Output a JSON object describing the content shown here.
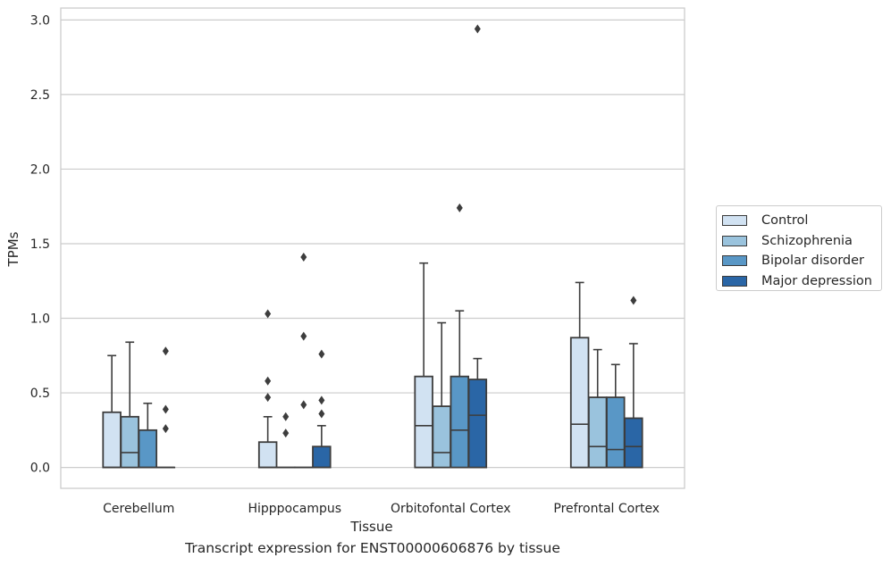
{
  "chart_data": {
    "type": "box",
    "ylabel": "TPMs",
    "xlabel": "Tissue",
    "caption": "Transcript expression for ENST00000606876 by tissue",
    "ylim": [
      -0.14,
      3.08
    ],
    "yticks": [
      "0.0",
      "0.5",
      "1.0",
      "1.5",
      "2.0",
      "2.5",
      "3.0"
    ],
    "grid": "horizontal",
    "legend_position": "right",
    "categories": [
      "Cerebellum",
      "Hipppocampus",
      "Orbitofontal Cortex",
      "Prefrontal Cortex"
    ],
    "series": [
      {
        "name": "Control",
        "color": "#d1e2f2",
        "boxes": [
          {
            "q1": 0.0,
            "median": 0.0,
            "q3": 0.37,
            "whisker_low": 0.0,
            "whisker_high": 0.75,
            "outliers": []
          },
          {
            "q1": 0.0,
            "median": 0.0,
            "q3": 0.17,
            "whisker_low": 0.0,
            "whisker_high": 0.34,
            "outliers": [
              0.47,
              0.58,
              1.03
            ]
          },
          {
            "q1": 0.0,
            "median": 0.28,
            "q3": 0.61,
            "whisker_low": 0.0,
            "whisker_high": 1.37,
            "outliers": []
          },
          {
            "q1": 0.0,
            "median": 0.29,
            "q3": 0.87,
            "whisker_low": 0.0,
            "whisker_high": 1.24,
            "outliers": []
          }
        ]
      },
      {
        "name": "Schizophrenia",
        "color": "#9ac3dd",
        "boxes": [
          {
            "q1": 0.0,
            "median": 0.1,
            "q3": 0.34,
            "whisker_low": 0.0,
            "whisker_high": 0.84,
            "outliers": []
          },
          {
            "q1": 0.0,
            "median": 0.0,
            "q3": 0.0,
            "whisker_low": 0.0,
            "whisker_high": 0.0,
            "outliers": [
              0.23,
              0.34
            ]
          },
          {
            "q1": 0.0,
            "median": 0.1,
            "q3": 0.41,
            "whisker_low": 0.0,
            "whisker_high": 0.97,
            "outliers": []
          },
          {
            "q1": 0.0,
            "median": 0.14,
            "q3": 0.47,
            "whisker_low": 0.0,
            "whisker_high": 0.79,
            "outliers": []
          }
        ]
      },
      {
        "name": "Bipolar disorder",
        "color": "#5997c6",
        "boxes": [
          {
            "q1": 0.0,
            "median": 0.0,
            "q3": 0.25,
            "whisker_low": 0.0,
            "whisker_high": 0.43,
            "outliers": []
          },
          {
            "q1": 0.0,
            "median": 0.0,
            "q3": 0.0,
            "whisker_low": 0.0,
            "whisker_high": 0.0,
            "outliers": [
              0.42,
              0.88,
              1.41
            ]
          },
          {
            "q1": 0.0,
            "median": 0.25,
            "q3": 0.61,
            "whisker_low": 0.0,
            "whisker_high": 1.05,
            "outliers": [
              1.74
            ]
          },
          {
            "q1": 0.0,
            "median": 0.12,
            "q3": 0.47,
            "whisker_low": 0.0,
            "whisker_high": 0.69,
            "outliers": []
          }
        ]
      },
      {
        "name": "Major depression",
        "color": "#2a66a6",
        "boxes": [
          {
            "q1": 0.0,
            "median": 0.0,
            "q3": 0.0,
            "whisker_low": 0.0,
            "whisker_high": 0.0,
            "outliers": [
              0.26,
              0.39,
              0.78
            ]
          },
          {
            "q1": 0.0,
            "median": 0.0,
            "q3": 0.14,
            "whisker_low": 0.0,
            "whisker_high": 0.28,
            "outliers": [
              0.36,
              0.45,
              0.76
            ]
          },
          {
            "q1": 0.0,
            "median": 0.35,
            "q3": 0.59,
            "whisker_low": 0.0,
            "whisker_high": 0.73,
            "outliers": [
              2.94
            ]
          },
          {
            "q1": 0.0,
            "median": 0.14,
            "q3": 0.33,
            "whisker_low": 0.0,
            "whisker_high": 0.83,
            "outliers": [
              1.12
            ]
          }
        ]
      }
    ]
  },
  "style": {
    "grid_color": "#cccccc",
    "frame_color": "#cccccc",
    "line_color": "#3d3d3d"
  }
}
